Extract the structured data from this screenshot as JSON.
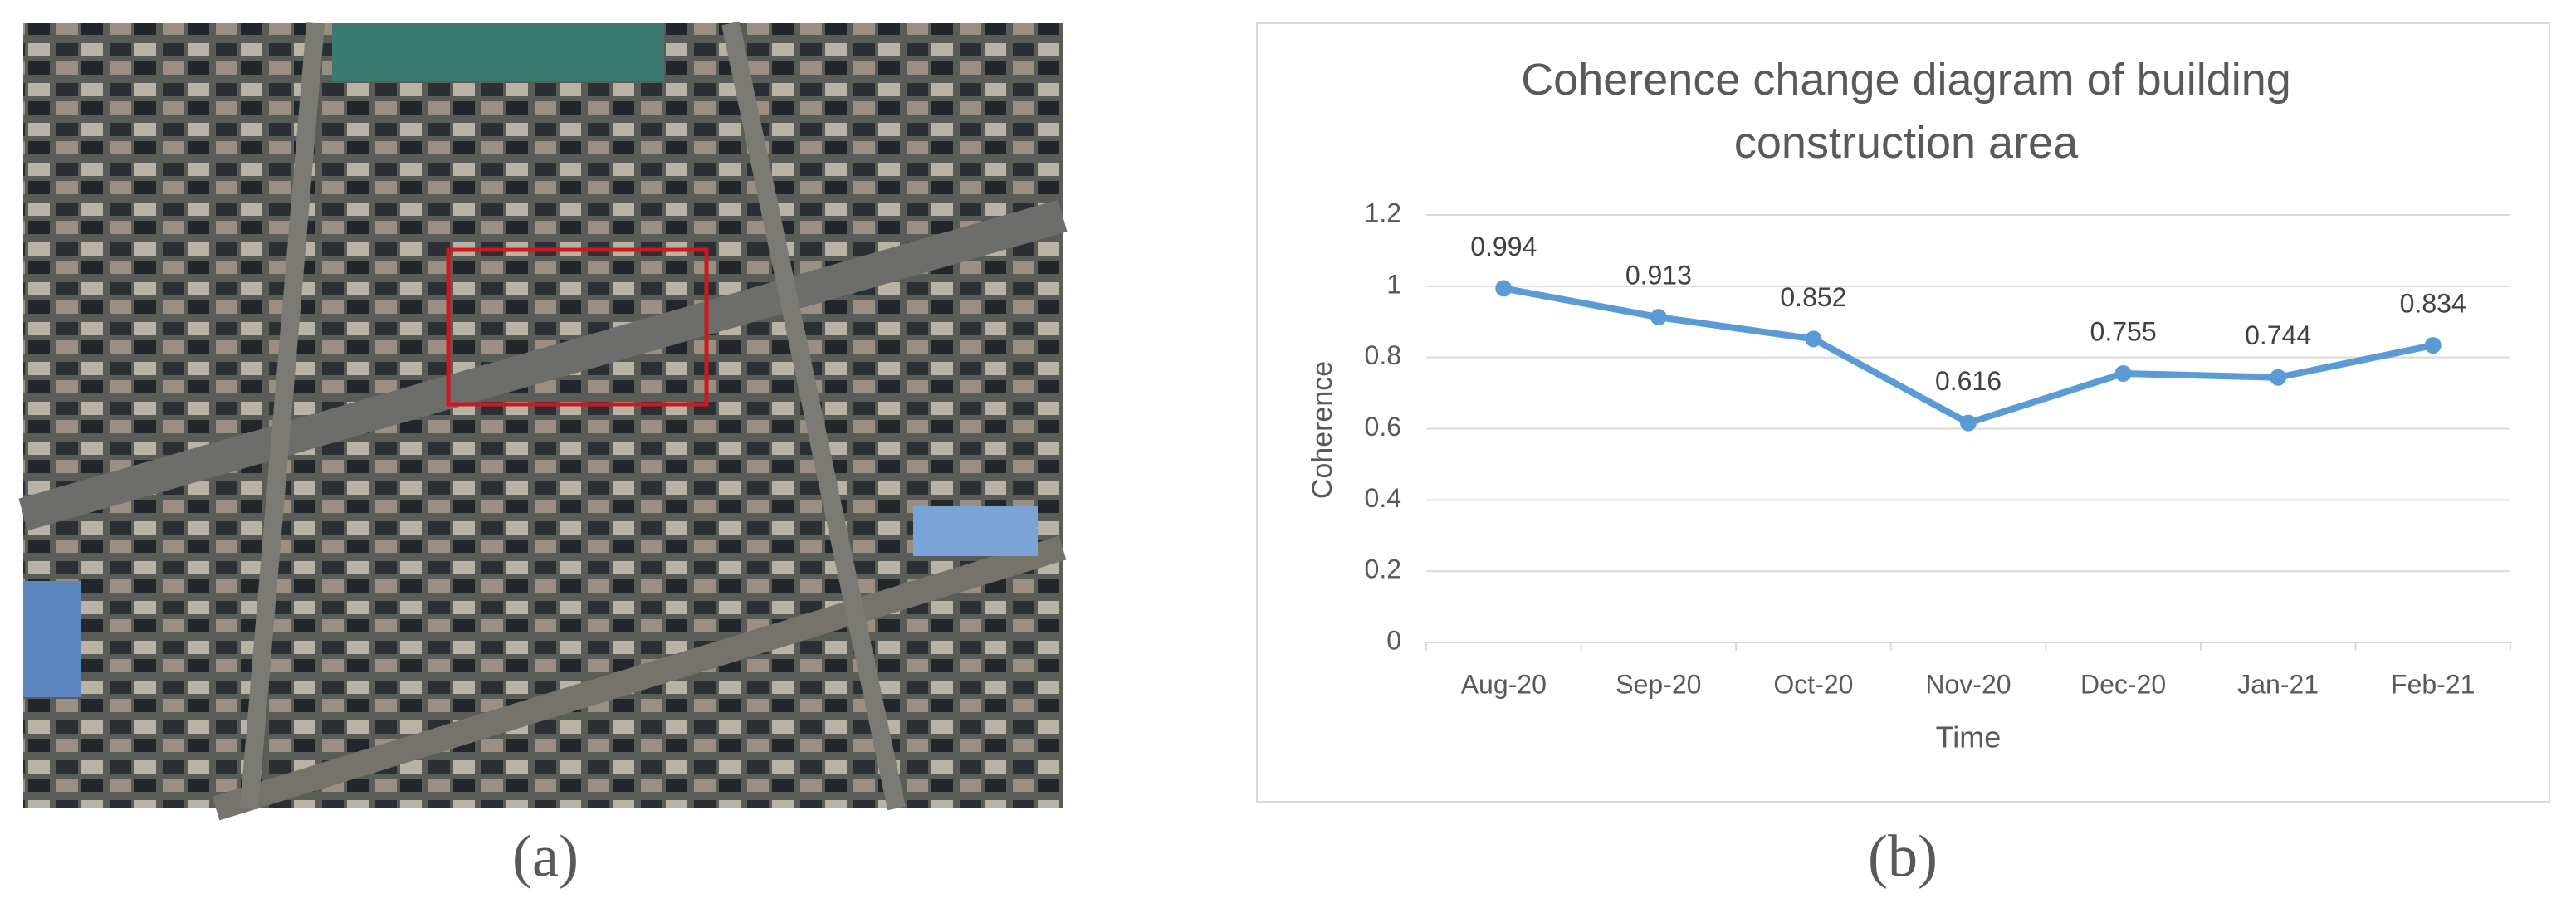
{
  "panels": [
    {
      "label": "(a)"
    },
    {
      "label": "(b)"
    }
  ],
  "chart_data": {
    "type": "line",
    "title": "Coherence change diagram of building construction area",
    "x_label": "Time",
    "y_label": "Coherence",
    "categories": [
      "Aug-20",
      "Sep-20",
      "Oct-20",
      "Nov-20",
      "Dec-20",
      "Jan-21",
      "Feb-21"
    ],
    "series": [
      {
        "name": "Coherence",
        "color": "#5b9bd5",
        "values": [
          0.994,
          0.913,
          0.852,
          0.616,
          0.755,
          0.744,
          0.834
        ]
      }
    ],
    "ylim": [
      0,
      1.2
    ],
    "yticks": [
      0,
      0.2,
      0.4,
      0.6,
      0.8,
      1,
      1.2
    ],
    "grid": true
  }
}
